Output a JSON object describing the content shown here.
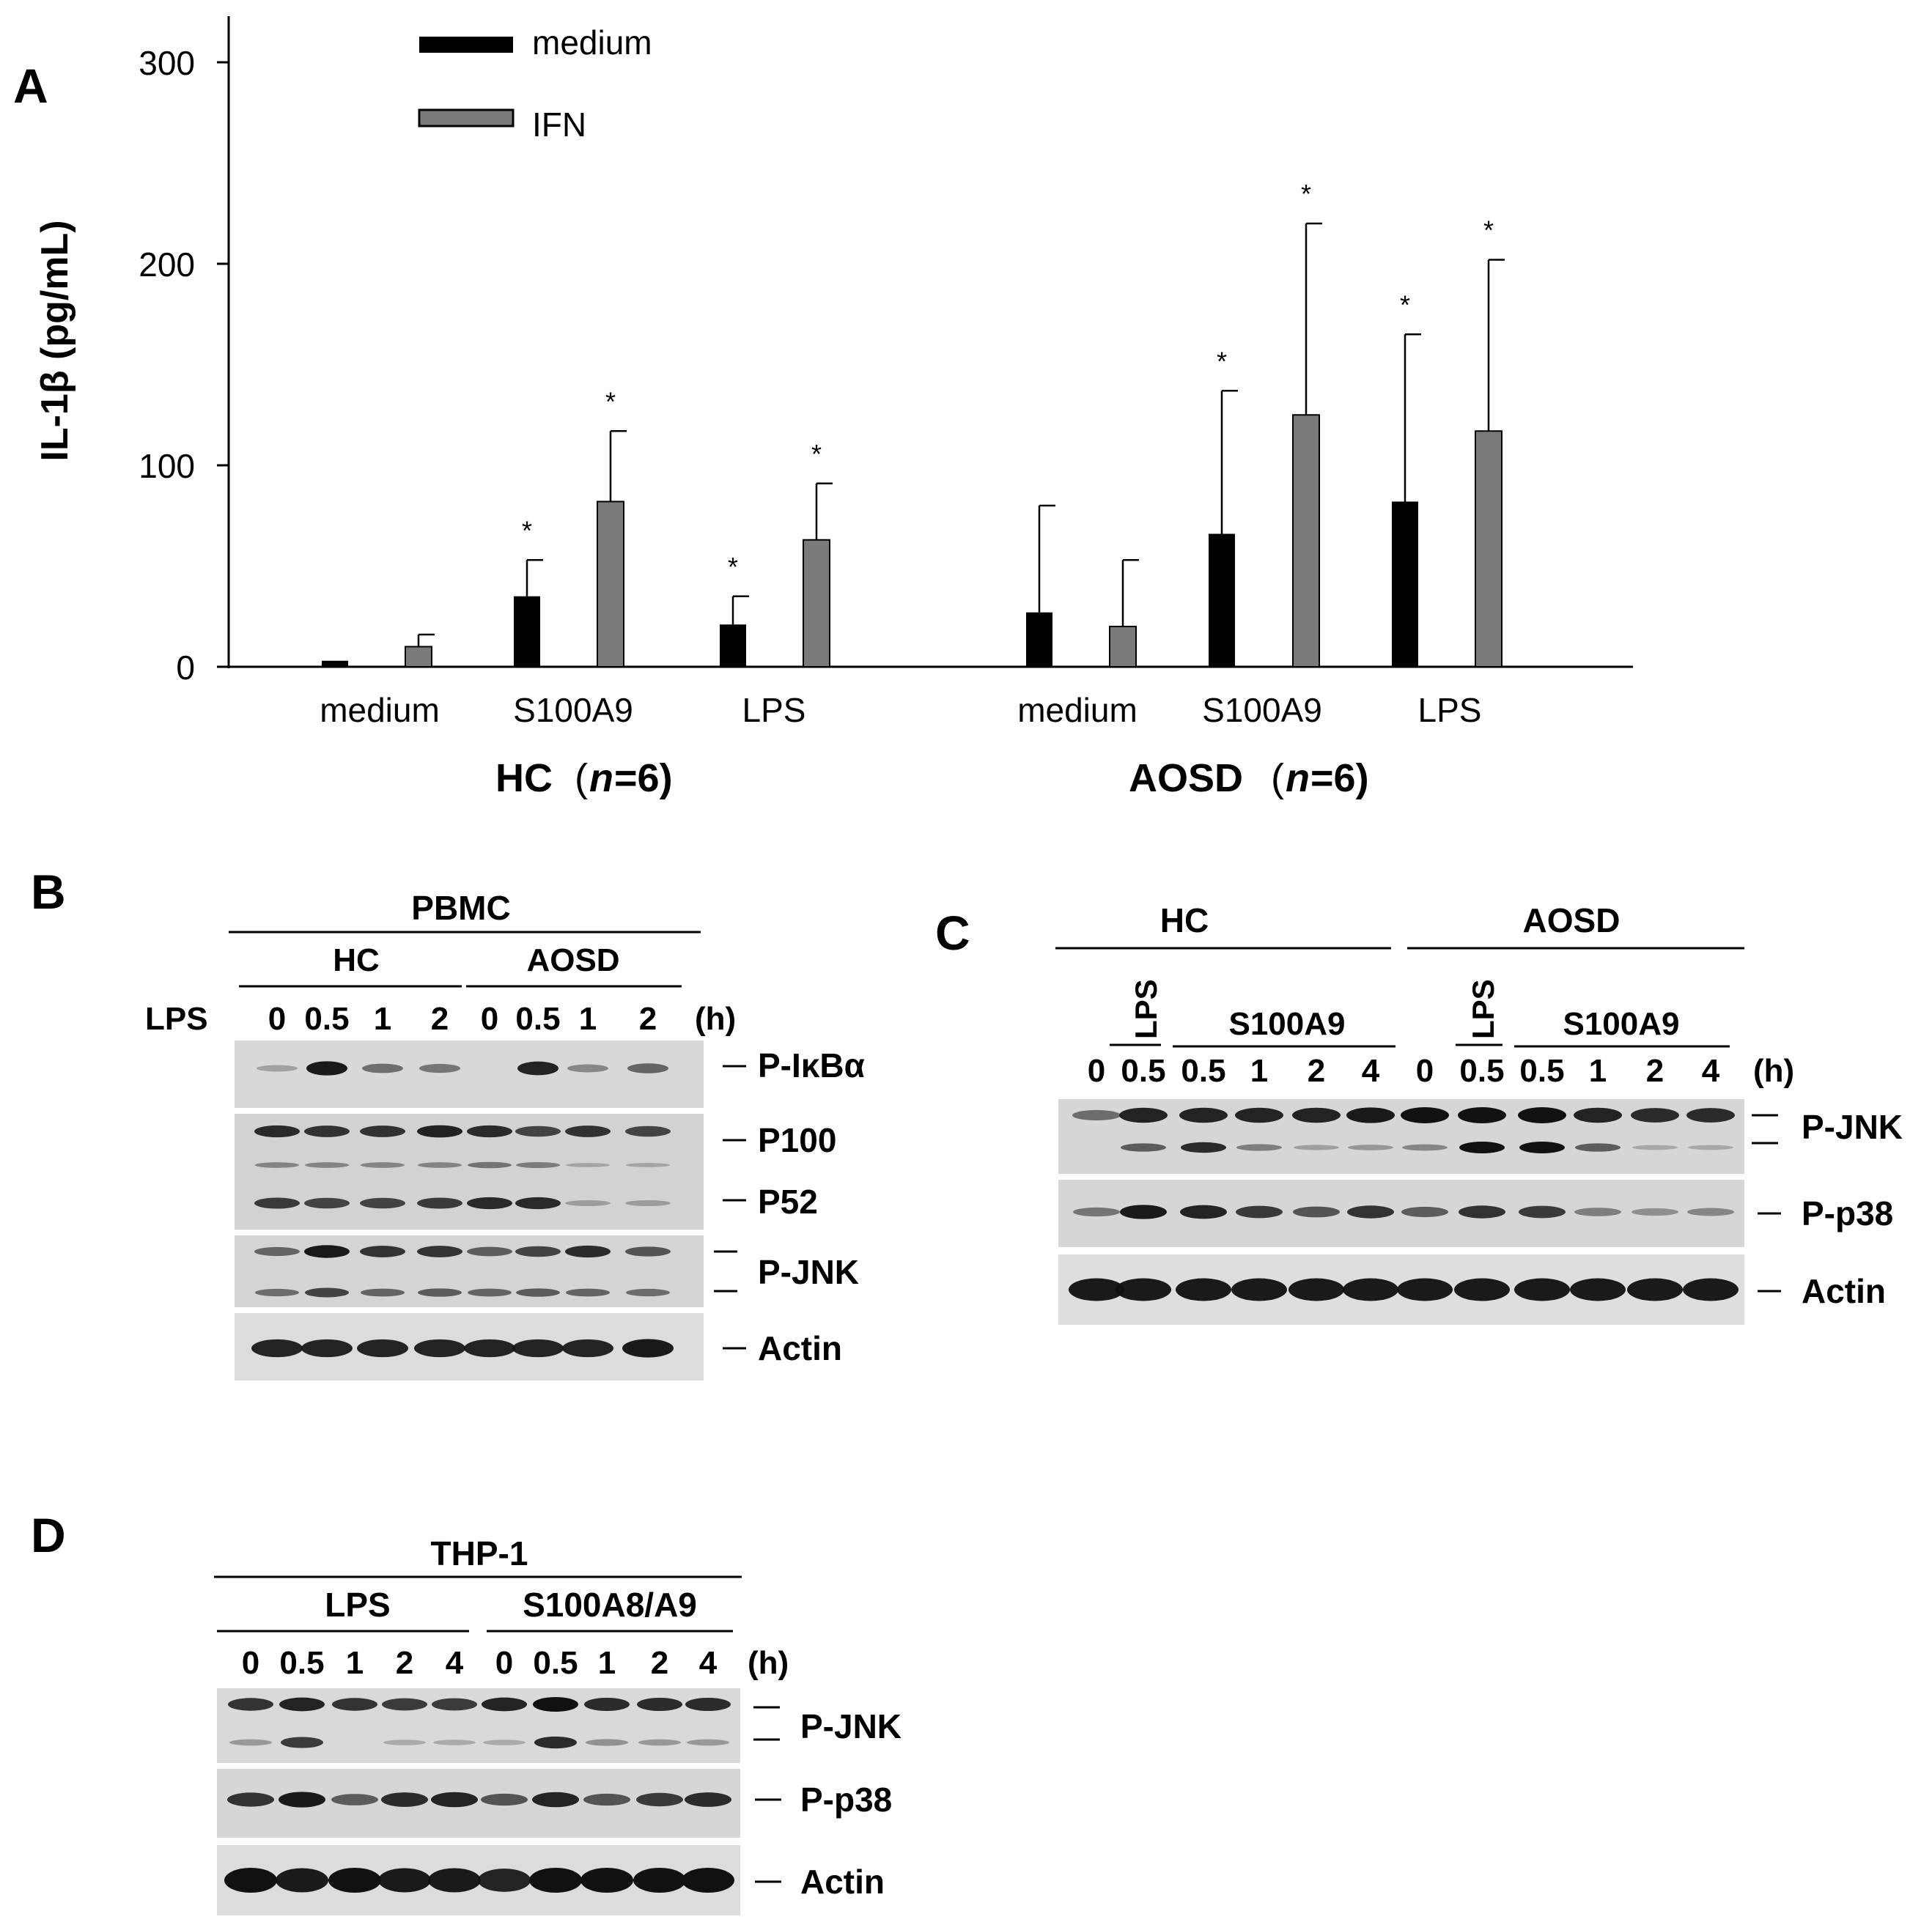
{
  "panel_a": {
    "letter": "A",
    "ylabel": "IL-1β (pg/mL)",
    "groups": [
      {
        "label": "HC",
        "n_prefix": "(",
        "n_symbol": "n",
        "n_value": "=6)"
      },
      {
        "label": "AOSD",
        "n_prefix": "(",
        "n_symbol": "n",
        "n_value": "=6)"
      }
    ],
    "significance_mark": "*"
  },
  "chart_data": {
    "type": "bar",
    "categories": [
      "medium",
      "S100A9",
      "LPS",
      "medium",
      "S100A9",
      "LPS"
    ],
    "ylim": [
      0,
      300
    ],
    "yticks": [
      "0",
      "100",
      "200",
      "300"
    ],
    "ylabel": "IL-1β (pg/mL)",
    "legend_position": "top-left",
    "series": [
      {
        "name": "medium",
        "color": "#000000",
        "values": [
          3,
          35,
          21,
          27,
          66,
          82
        ],
        "errors": [
          0,
          18,
          14,
          53,
          71,
          83
        ],
        "significant": [
          false,
          true,
          true,
          false,
          true,
          true
        ]
      },
      {
        "name": "IFN",
        "color": "#7a7a7a",
        "values": [
          10,
          82,
          63,
          20,
          125,
          117
        ],
        "errors": [
          6,
          35,
          28,
          33,
          95,
          85
        ],
        "significant": [
          false,
          true,
          true,
          false,
          true,
          true
        ]
      }
    ]
  },
  "panel_b": {
    "letter": "B",
    "source": "PBMC",
    "groups": [
      "HC",
      "AOSD"
    ],
    "treatment": "LPS",
    "lanes": [
      "0",
      "0.5",
      "1",
      "2",
      "0",
      "0.5",
      "1",
      "2"
    ],
    "unit": "(h)",
    "labels": [
      "P-IκBα",
      "P100",
      "P52",
      "P-JNK",
      "Actin"
    ]
  },
  "panel_c": {
    "letter": "C",
    "groups": [
      "HC",
      "AOSD"
    ],
    "stim_lps": "LPS",
    "stim_s100": "S100A9",
    "lanes": [
      "0",
      "0.5",
      "0.5",
      "1",
      "2",
      "4",
      "0",
      "0.5",
      "0.5",
      "1",
      "2",
      "4"
    ],
    "unit": "(h)",
    "labels": [
      "P-JNK",
      "P-p38",
      "Actin"
    ]
  },
  "panel_d": {
    "letter": "D",
    "source": "THP-1",
    "groups": [
      "LPS",
      "S100A8/A9"
    ],
    "lanes": [
      "0",
      "0.5",
      "1",
      "2",
      "4",
      "0",
      "0.5",
      "1",
      "2",
      "4"
    ],
    "unit": "(h)",
    "labels": [
      "P-JNK",
      "P-p38",
      "Actin"
    ]
  }
}
